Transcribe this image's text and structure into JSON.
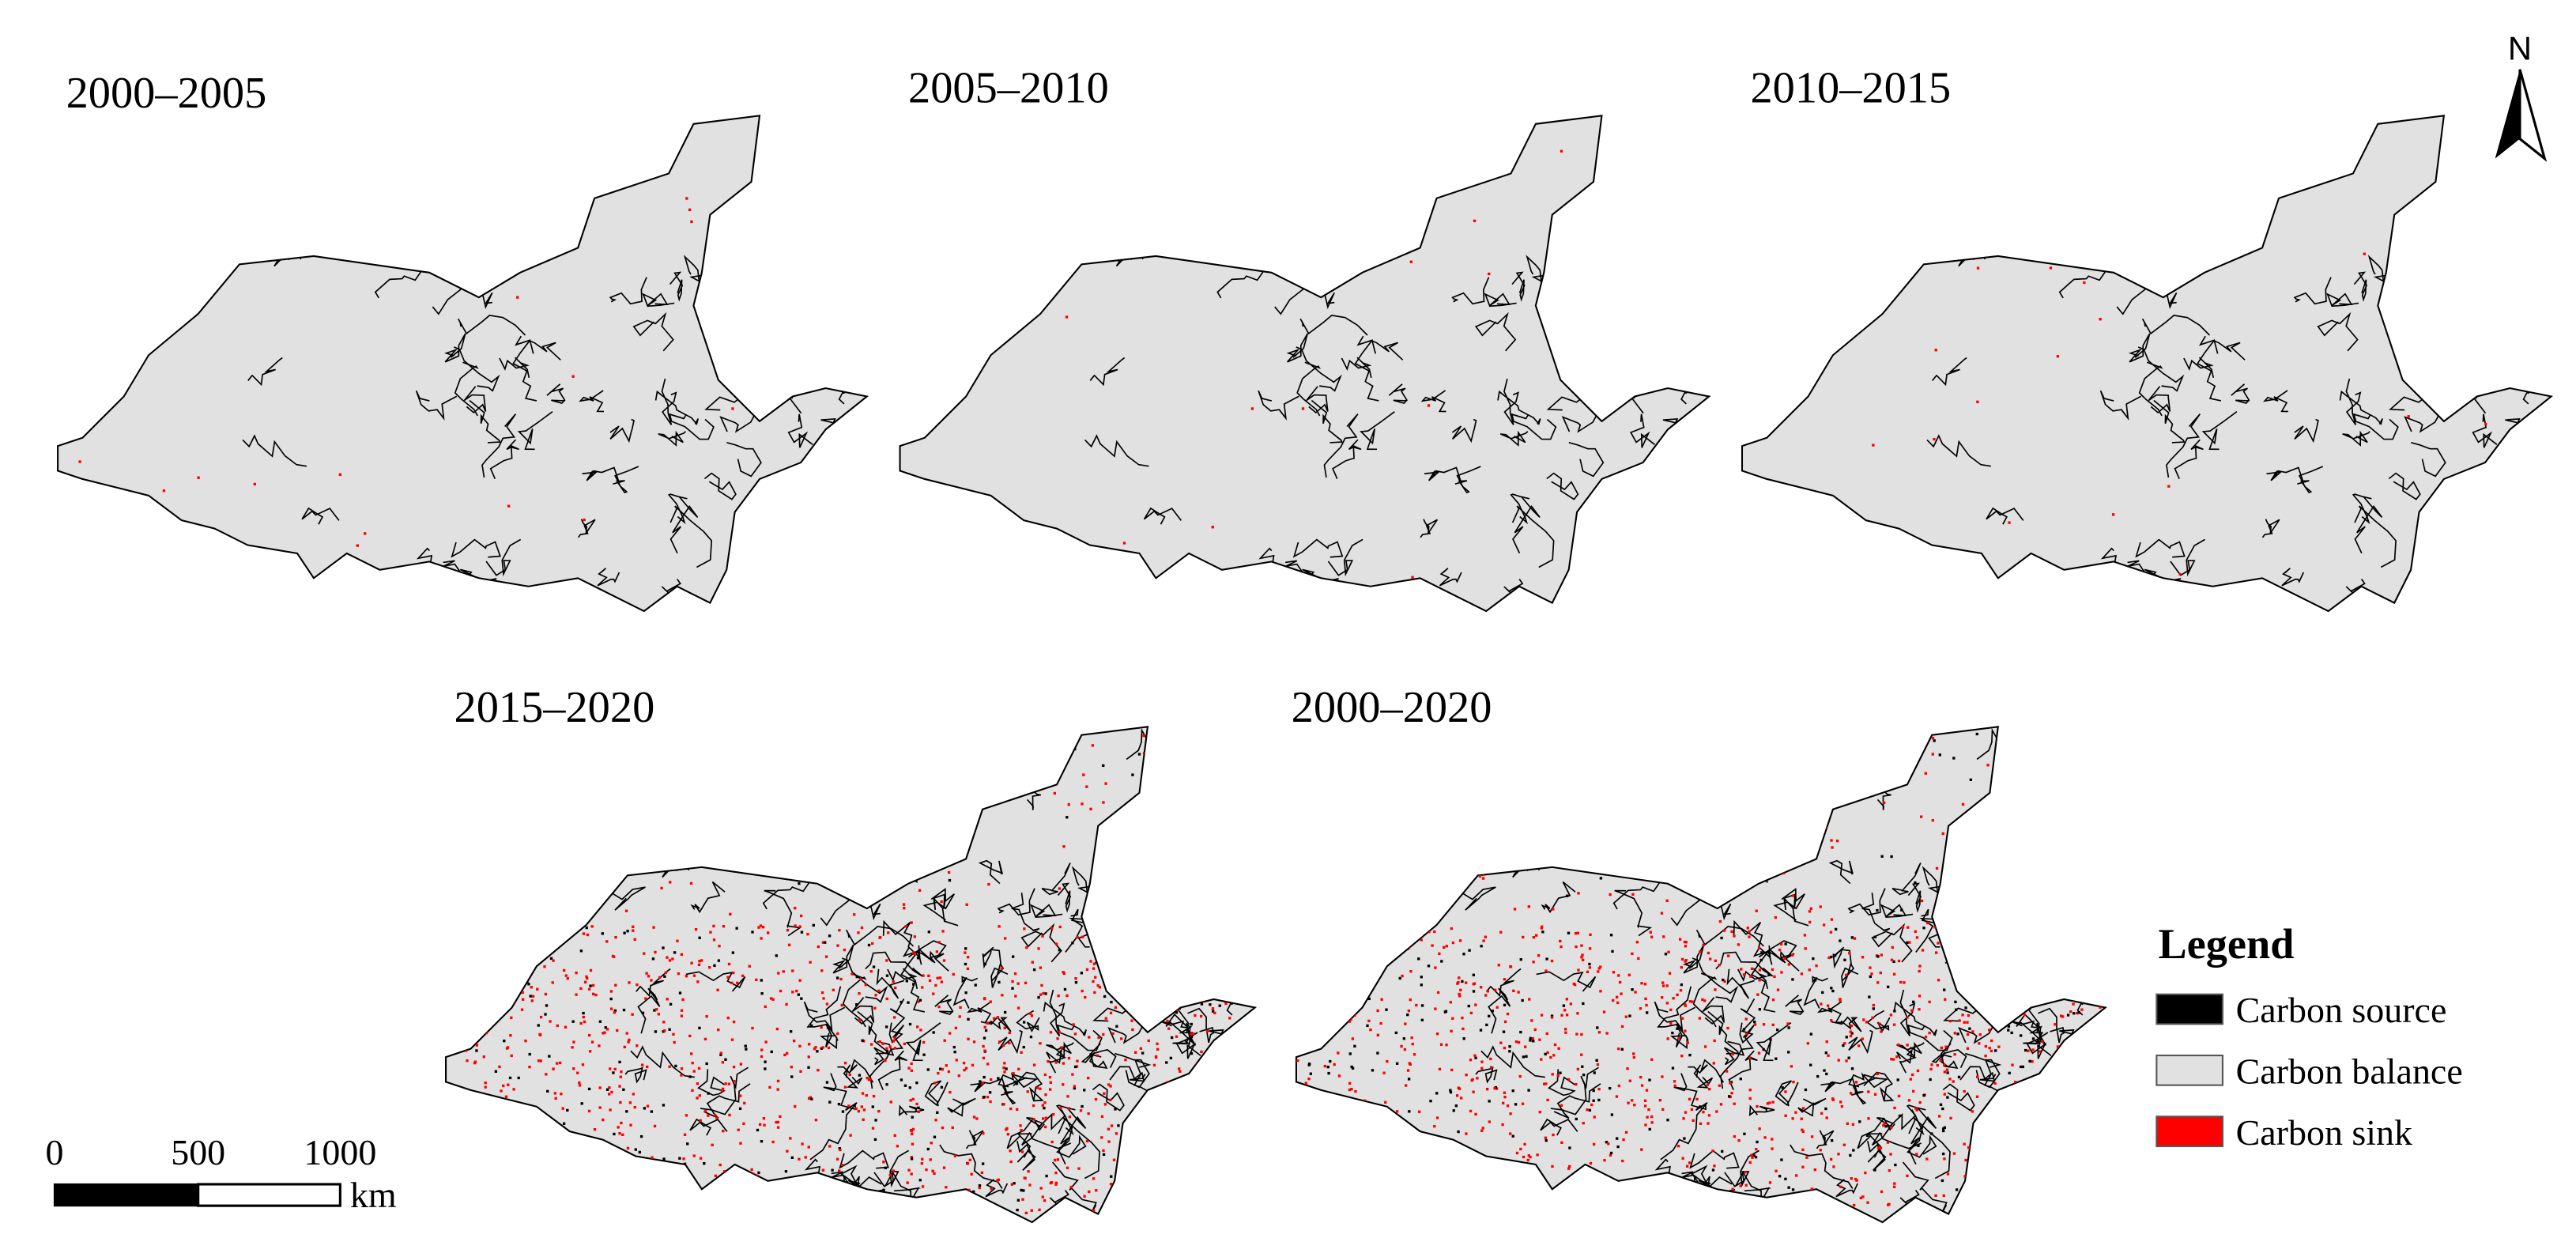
{
  "panels": [
    {
      "title": "2000–2005"
    },
    {
      "title": "2005–2010"
    },
    {
      "title": "2010–2015"
    },
    {
      "title": "2015–2020"
    },
    {
      "title": "2000–2020"
    }
  ],
  "legend": {
    "title": "Legend",
    "items": [
      {
        "label": "Carbon source",
        "color": "#000000"
      },
      {
        "label": "Carbon balance",
        "color": "#e1e1e1"
      },
      {
        "label": "Carbon sink",
        "color": "#ff0000"
      }
    ]
  },
  "scale_bar": {
    "labels": [
      "0",
      "500",
      "1000"
    ],
    "unit": "km"
  },
  "north_arrow": {
    "label": "N"
  }
}
